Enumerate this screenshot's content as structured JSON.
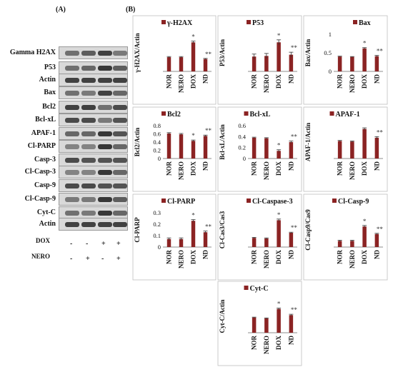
{
  "panels": {
    "a": "(A)",
    "b": "(B)"
  },
  "blots": [
    {
      "label": "Gamma H2AX",
      "intensity": [
        0.55,
        0.65,
        0.8,
        0.5
      ]
    },
    {
      "label": "P53",
      "intensity": [
        0.55,
        0.6,
        0.85,
        0.65
      ]
    },
    {
      "label": "Actin",
      "intensity": [
        0.8,
        0.8,
        0.8,
        0.8
      ]
    },
    {
      "label": "Bax",
      "intensity": [
        0.55,
        0.5,
        0.8,
        0.6
      ]
    },
    {
      "label": "Bcl2",
      "intensity": [
        0.8,
        0.8,
        0.55,
        0.75
      ]
    },
    {
      "label": "Bcl-xL",
      "intensity": [
        0.75,
        0.75,
        0.5,
        0.7
      ]
    },
    {
      "label": "APAF-1",
      "intensity": [
        0.6,
        0.6,
        0.85,
        0.7
      ]
    },
    {
      "label": "Cl-PARP",
      "intensity": [
        0.45,
        0.45,
        0.85,
        0.6
      ]
    },
    {
      "label": "Casp-3",
      "intensity": [
        0.75,
        0.7,
        0.7,
        0.7
      ]
    },
    {
      "label": "Cl-Casp-3",
      "intensity": [
        0.45,
        0.45,
        0.85,
        0.6
      ]
    },
    {
      "label": "Casp-9",
      "intensity": [
        0.75,
        0.75,
        0.7,
        0.7
      ]
    },
    {
      "label": "Cl-Casp-9",
      "intensity": [
        0.5,
        0.5,
        0.85,
        0.65
      ]
    },
    {
      "label": "Cyt-C",
      "intensity": [
        0.55,
        0.5,
        0.85,
        0.6
      ]
    },
    {
      "label": "Actin",
      "intensity": [
        0.8,
        0.8,
        0.8,
        0.8
      ]
    }
  ],
  "treatments": [
    {
      "label": "DOX",
      "signs": [
        "-",
        "-",
        "+",
        "+"
      ]
    },
    {
      "label": "NERO",
      "signs": [
        "-",
        "+",
        "-",
        "+"
      ]
    }
  ],
  "colors": {
    "bar": "#8B2323",
    "err": "#333333",
    "band": "#1a1a1a"
  },
  "chart_data": [
    {
      "type": "bar",
      "title": "γ-H2AX",
      "ylabel": "γ-H2AX/Actin",
      "categories": [
        "NOR",
        "NERO",
        "DOX",
        "ND"
      ],
      "values": [
        0.23,
        0.23,
        0.47,
        0.2
      ],
      "errors": [
        0.01,
        0.01,
        0.02,
        0.01
      ],
      "ylim": [
        0,
        0.6
      ],
      "ticks": [],
      "annotations": [
        "",
        "",
        "*",
        "**"
      ],
      "legend": "top-left"
    },
    {
      "type": "bar",
      "title": "P53",
      "ylabel": "P53/Actin",
      "categories": [
        "NOR",
        "NERO",
        "DOX",
        "ND"
      ],
      "values": [
        0.24,
        0.25,
        0.47,
        0.27
      ],
      "errors": [
        0.04,
        0.04,
        0.04,
        0.04
      ],
      "ylim": [
        0,
        0.6
      ],
      "ticks": [],
      "annotations": [
        "",
        "",
        "*",
        "**"
      ],
      "legend": "top-left"
    },
    {
      "type": "bar",
      "title": "Bax",
      "ylabel": "Bax/Actin",
      "categories": [
        "NOR",
        "NERO",
        "DOX",
        "ND"
      ],
      "values": [
        0.4,
        0.39,
        0.62,
        0.41
      ],
      "errors": [
        0.01,
        0.01,
        0.02,
        0.02
      ],
      "ylim": [
        0,
        1
      ],
      "ticks": [
        0,
        0.5,
        1
      ],
      "tickLabels": [
        "0",
        "0.5",
        "1"
      ],
      "annotations": [
        "",
        "",
        "*",
        "**"
      ],
      "legend": "top-right"
    },
    {
      "type": "bar",
      "title": "Bcl2",
      "ylabel": "Bcl2/Actin",
      "categories": [
        "NOR",
        "NERO",
        "DOX",
        "ND"
      ],
      "values": [
        0.61,
        0.59,
        0.43,
        0.55
      ],
      "errors": [
        0.02,
        0.02,
        0.02,
        0.02
      ],
      "ylim": [
        0,
        0.8
      ],
      "ticks": [
        0,
        0.2,
        0.4,
        0.6,
        0.8
      ],
      "tickLabels": [
        "0",
        "0.2",
        "0.4",
        "0.6",
        "0.8"
      ],
      "annotations": [
        "",
        "",
        "*",
        "**"
      ],
      "legend": "top-left"
    },
    {
      "type": "bar",
      "title": "Bcl-xL",
      "ylabel": "Bcl-xL/Actin",
      "categories": [
        "NOR",
        "NERO",
        "DOX",
        "ND"
      ],
      "values": [
        0.38,
        0.37,
        0.14,
        0.3
      ],
      "errors": [
        0.01,
        0.01,
        0.02,
        0.02
      ],
      "ylim": [
        0,
        0.6
      ],
      "ticks": [
        0,
        0.2,
        0.4,
        0.6
      ],
      "tickLabels": [
        "0",
        "0.2",
        "0.4",
        "0.6"
      ],
      "annotations": [
        "",
        "",
        "*",
        "**"
      ],
      "legend": "top-center"
    },
    {
      "type": "bar",
      "title": "APAF-1",
      "ylabel": "APAF-1/Actin",
      "categories": [
        "NOR",
        "NERO",
        "DOX",
        "ND"
      ],
      "values": [
        0.32,
        0.31,
        0.54,
        0.38
      ],
      "errors": [
        0.01,
        0.01,
        0.02,
        0.02
      ],
      "ylim": [
        0,
        0.6
      ],
      "ticks": [],
      "annotations": [
        "",
        "",
        "",
        "**"
      ],
      "legend": "top-center"
    },
    {
      "type": "bar",
      "title": "Cl-PARP",
      "ylabel": "Cl-PARP",
      "categories": [
        "NOR",
        "NERO",
        "DOX",
        "ND"
      ],
      "values": [
        0.07,
        0.07,
        0.23,
        0.13
      ],
      "errors": [
        0.01,
        0.01,
        0.01,
        0.01
      ],
      "ylim": [
        0,
        0.3
      ],
      "ticks": [
        0,
        0.1,
        0.2,
        0.3
      ],
      "tickLabels": [
        "0",
        "0.1",
        "0.2",
        "0.3"
      ],
      "annotations": [
        "",
        "",
        "*",
        "**"
      ],
      "legend": "top-left"
    },
    {
      "type": "bar",
      "title": "Cl-Caspase-3",
      "ylabel": "Cl-Cas3/Cas3",
      "categories": [
        "NOR",
        "NERO",
        "DOX",
        "ND"
      ],
      "values": [
        0.16,
        0.15,
        0.47,
        0.25
      ],
      "errors": [
        0.01,
        0.01,
        0.02,
        0.01
      ],
      "ylim": [
        0,
        0.6
      ],
      "ticks": [],
      "annotations": [
        "",
        "",
        "*",
        "**"
      ],
      "legend": "top-left"
    },
    {
      "type": "bar",
      "title": "Cl-Casp-9",
      "ylabel": "Cl-Casp9/Cas9",
      "categories": [
        "NOR",
        "NERO",
        "DOX",
        "ND"
      ],
      "values": [
        0.18,
        0.18,
        0.6,
        0.38
      ],
      "errors": [
        0.02,
        0.02,
        0.03,
        0.02
      ],
      "ylim": [
        0,
        1
      ],
      "ticks": [],
      "annotations": [
        "",
        "",
        "*",
        "**"
      ],
      "legend": "top-left"
    },
    {
      "type": "bar",
      "title": "Cyt-C",
      "ylabel": "Cyt-C/Actin",
      "categories": [
        "NOR",
        "NERO",
        "DOX",
        "ND"
      ],
      "values": [
        0.37,
        0.35,
        0.58,
        0.43
      ],
      "errors": [
        0.01,
        0.01,
        0.02,
        0.02
      ],
      "ylim": [
        0,
        0.8
      ],
      "ticks": [],
      "annotations": [
        "",
        "",
        "*",
        "**"
      ],
      "legend": "top-center"
    }
  ]
}
